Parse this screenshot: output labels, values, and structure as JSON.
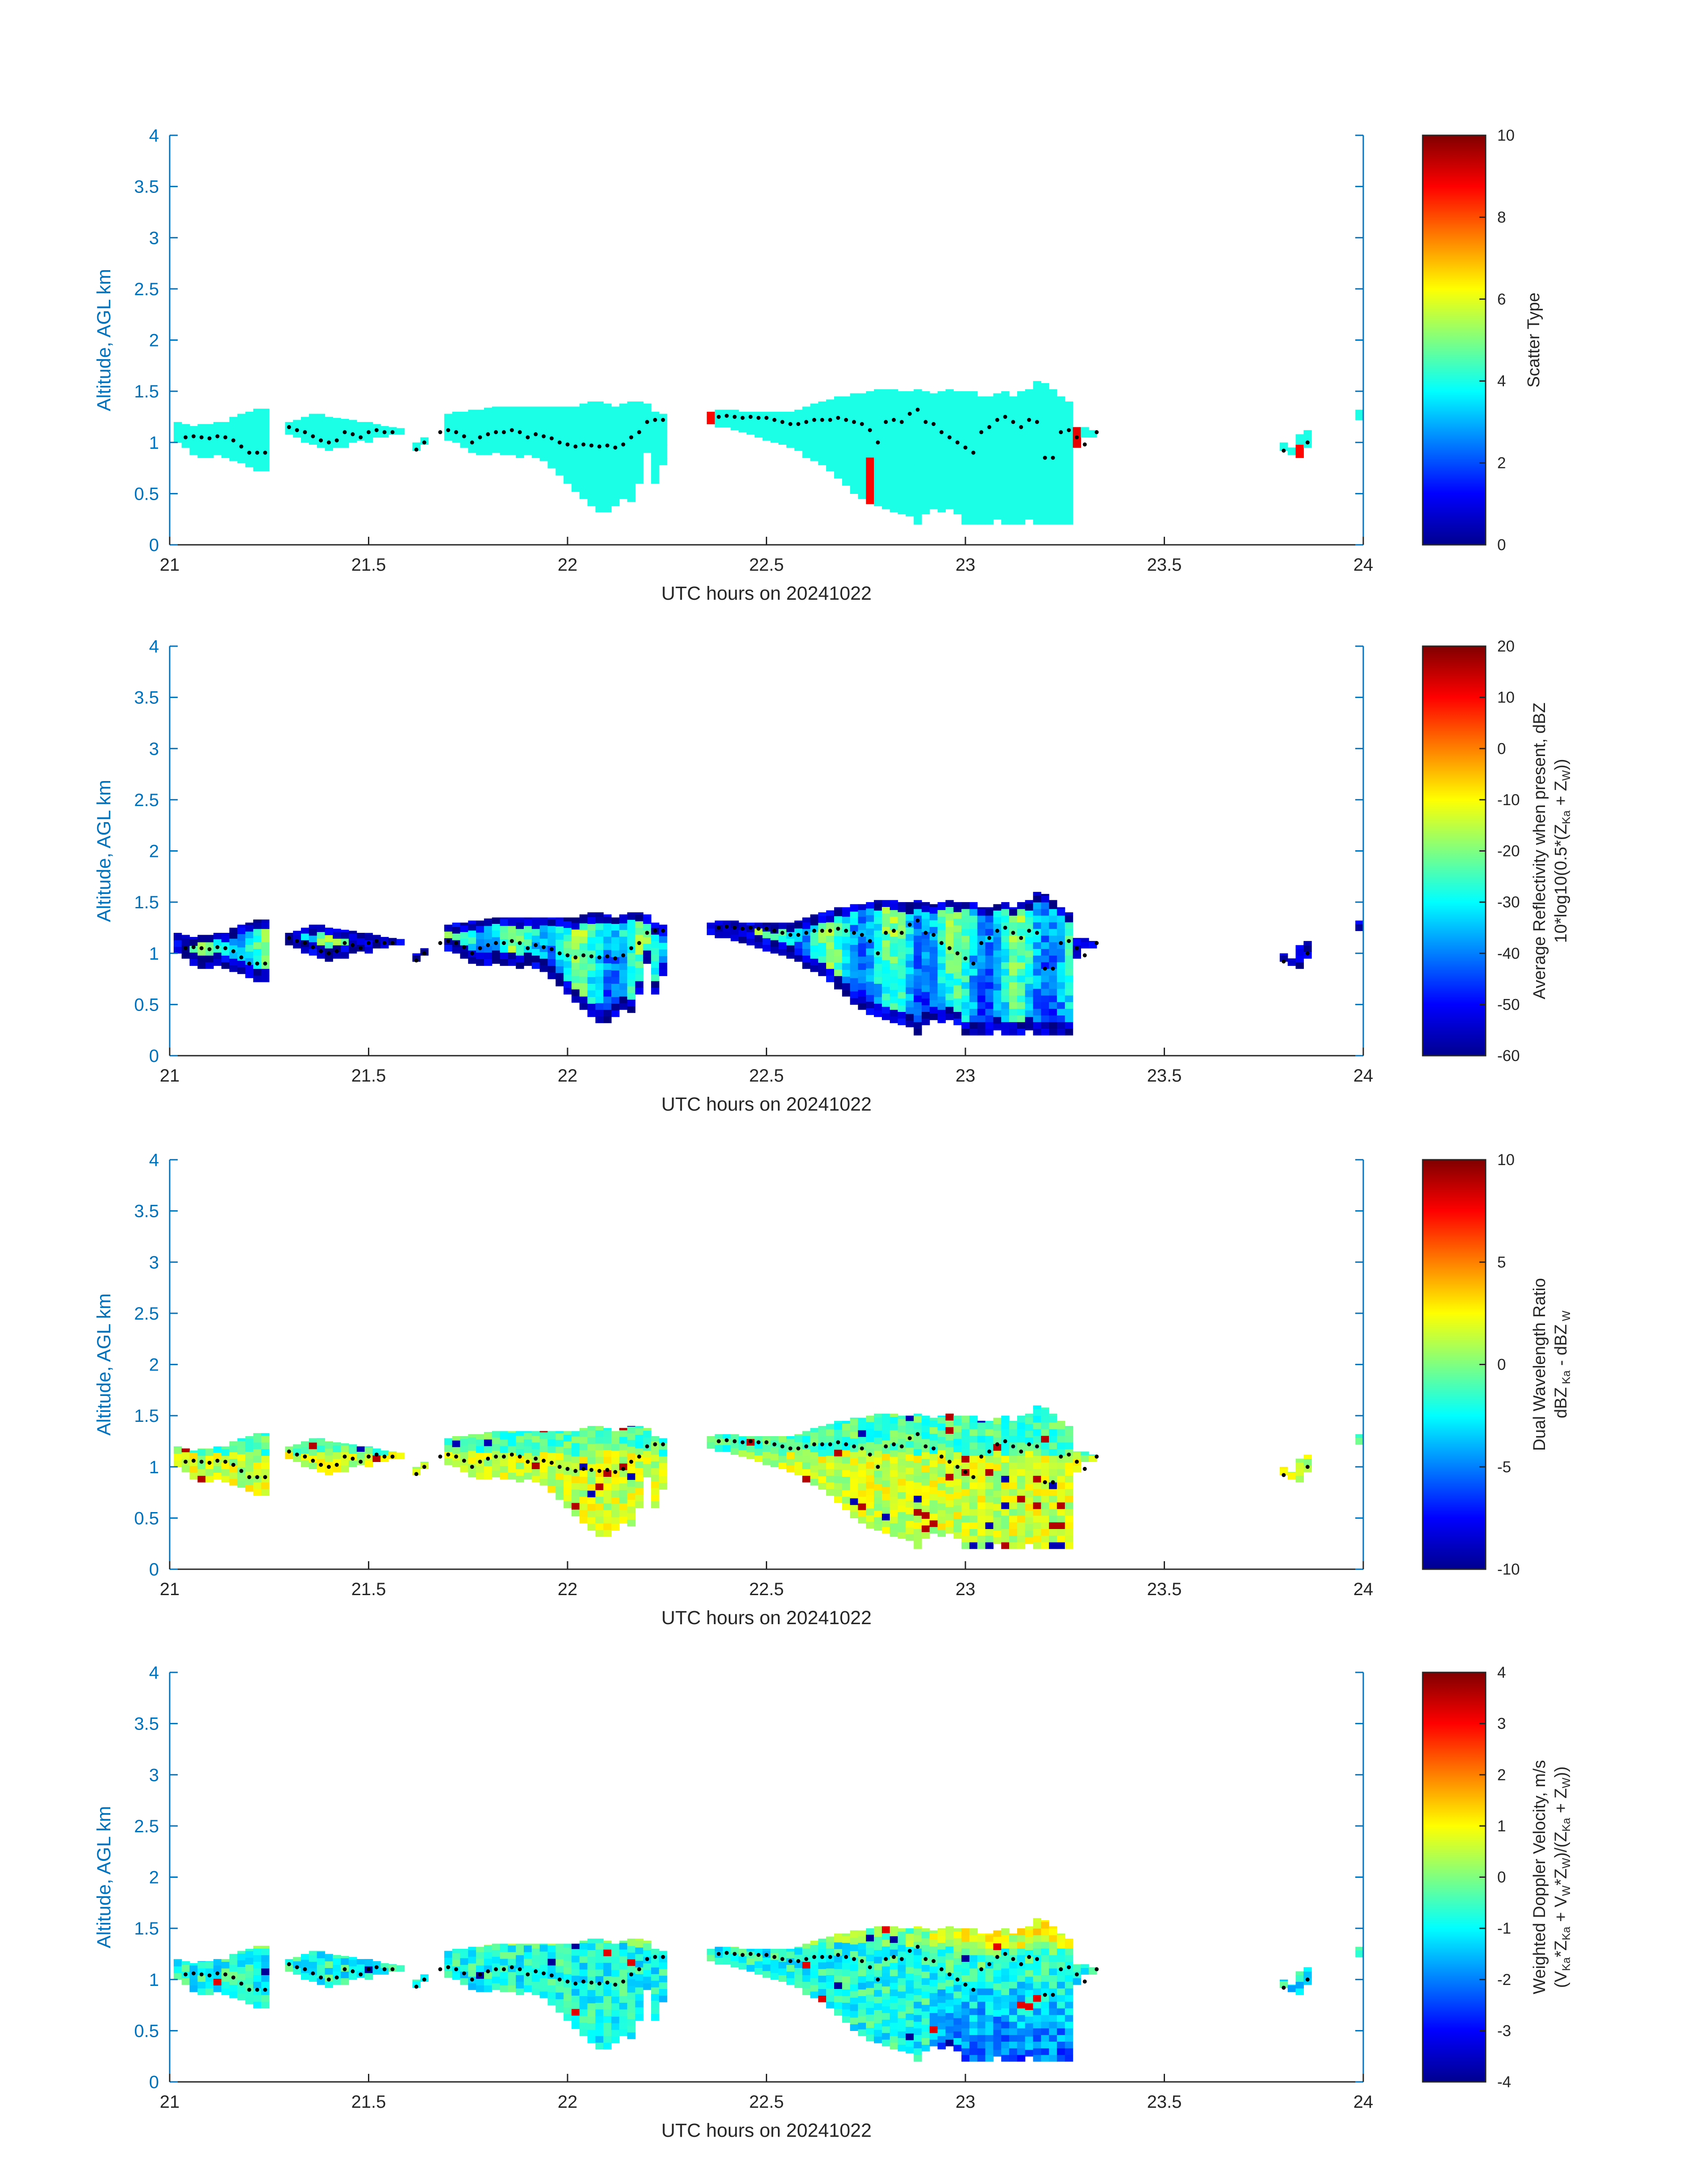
{
  "chart_data": [
    {
      "type": "heatmap",
      "panel_id": "scatter-type",
      "xlabel": "UTC hours on 20241022",
      "ylabel": "Altitude, AGL km",
      "xlim": [
        21,
        24
      ],
      "ylim": [
        0,
        4
      ],
      "x_ticks": [
        "21",
        "21.5",
        "22",
        "22.5",
        "23",
        "23.5",
        "24"
      ],
      "y_ticks": [
        "0",
        "0.5",
        "1",
        "1.5",
        "2",
        "2.5",
        "3",
        "3.5",
        "4"
      ],
      "colorbar": {
        "title": "Scatter Type",
        "title_line2": "",
        "range": [
          0,
          10
        ],
        "ticks": [
          "0",
          "2",
          "4",
          "6",
          "8",
          "10"
        ],
        "colormap": "jet"
      },
      "field": "scatter",
      "grid": false
    },
    {
      "type": "heatmap",
      "panel_id": "reflectivity",
      "xlabel": "UTC hours on 20241022",
      "ylabel": "Altitude, AGL km",
      "xlim": [
        21,
        24
      ],
      "ylim": [
        0,
        4
      ],
      "x_ticks": [
        "21",
        "21.5",
        "22",
        "22.5",
        "23",
        "23.5",
        "24"
      ],
      "y_ticks": [
        "0",
        "0.5",
        "1",
        "1.5",
        "2",
        "2.5",
        "3",
        "3.5",
        "4"
      ],
      "colorbar": {
        "title": "Average Reflectivity when present, dBZ",
        "title_line2": "10*log10(0.5*(Z Ka + Z W))",
        "range": [
          -60,
          20
        ],
        "ticks": [
          "-60",
          "-50",
          "-40",
          "-30",
          "-20",
          "-10",
          "0",
          "10",
          "20"
        ],
        "colormap": "jet"
      },
      "field": "reflectivity",
      "grid": false
    },
    {
      "type": "heatmap",
      "panel_id": "dwr",
      "xlabel": "UTC hours on 20241022",
      "ylabel": "Altitude, AGL km",
      "xlim": [
        21,
        24
      ],
      "ylim": [
        0,
        4
      ],
      "x_ticks": [
        "21",
        "21.5",
        "22",
        "22.5",
        "23",
        "23.5",
        "24"
      ],
      "y_ticks": [
        "0",
        "0.5",
        "1",
        "1.5",
        "2",
        "2.5",
        "3",
        "3.5",
        "4"
      ],
      "colorbar": {
        "title": "Dual Wavelength Ratio",
        "title_line2": "dBZ Ka - dBZ W",
        "range": [
          -10,
          10
        ],
        "ticks": [
          "-10",
          "-5",
          "0",
          "5",
          "10"
        ],
        "colormap": "jet"
      },
      "field": "dwr",
      "grid": false
    },
    {
      "type": "heatmap",
      "panel_id": "doppler-velocity",
      "xlabel": "UTC hours on 20241022",
      "ylabel": "Altitude, AGL km",
      "xlim": [
        21,
        24
      ],
      "ylim": [
        0,
        4
      ],
      "x_ticks": [
        "21",
        "21.5",
        "22",
        "22.5",
        "23",
        "23.5",
        "24"
      ],
      "y_ticks": [
        "0",
        "0.5",
        "1",
        "1.5",
        "2",
        "2.5",
        "3",
        "3.5",
        "4"
      ],
      "colorbar": {
        "title": "Weighted Doppler Velocity, m/s",
        "title_line2": "(V Ka*Z Ka + V W*Z W)/(Z Ka + Z W))",
        "range": [
          -4,
          4
        ],
        "ticks": [
          "-4",
          "-3",
          "-2",
          "-1",
          "0",
          "1",
          "2",
          "3",
          "4"
        ],
        "colormap": "jet"
      },
      "field": "velocity",
      "grid": false
    }
  ],
  "cloud_columns": [
    [
      21.02,
      1.0,
      1.2
    ],
    [
      21.04,
      0.95,
      1.18
    ],
    [
      21.06,
      0.88,
      1.16
    ],
    [
      21.08,
      0.85,
      1.18
    ],
    [
      21.1,
      0.85,
      1.18
    ],
    [
      21.12,
      0.88,
      1.2
    ],
    [
      21.14,
      0.85,
      1.2
    ],
    [
      21.16,
      0.82,
      1.25
    ],
    [
      21.18,
      0.8,
      1.28
    ],
    [
      21.2,
      0.76,
      1.3
    ],
    [
      21.22,
      0.72,
      1.33
    ],
    [
      21.24,
      0.72,
      1.33
    ],
    [
      21.3,
      1.08,
      1.2
    ],
    [
      21.32,
      1.05,
      1.22
    ],
    [
      21.34,
      1.0,
      1.25
    ],
    [
      21.36,
      0.98,
      1.28
    ],
    [
      21.38,
      0.95,
      1.28
    ],
    [
      21.4,
      0.92,
      1.25
    ],
    [
      21.42,
      0.95,
      1.24
    ],
    [
      21.44,
      0.95,
      1.23
    ],
    [
      21.46,
      1.0,
      1.22
    ],
    [
      21.48,
      1.02,
      1.2
    ],
    [
      21.5,
      1.0,
      1.2
    ],
    [
      21.52,
      1.05,
      1.18
    ],
    [
      21.54,
      1.05,
      1.16
    ],
    [
      21.56,
      1.08,
      1.15
    ],
    [
      21.58,
      1.08,
      1.14
    ],
    [
      21.62,
      0.92,
      1.0
    ],
    [
      21.64,
      0.98,
      1.05
    ],
    [
      21.7,
      1.02,
      1.28
    ],
    [
      21.72,
      1.0,
      1.3
    ],
    [
      21.74,
      0.95,
      1.3
    ],
    [
      21.76,
      0.9,
      1.32
    ],
    [
      21.78,
      0.88,
      1.32
    ],
    [
      21.8,
      0.88,
      1.34
    ],
    [
      21.82,
      0.9,
      1.35
    ],
    [
      21.84,
      0.88,
      1.35
    ],
    [
      21.86,
      0.88,
      1.35
    ],
    [
      21.88,
      0.85,
      1.35
    ],
    [
      21.9,
      0.88,
      1.35
    ],
    [
      21.92,
      0.85,
      1.35
    ],
    [
      21.94,
      0.82,
      1.35
    ],
    [
      21.96,
      0.75,
      1.35
    ],
    [
      21.98,
      0.68,
      1.35
    ],
    [
      22.0,
      0.6,
      1.35
    ],
    [
      22.02,
      0.52,
      1.35
    ],
    [
      22.04,
      0.45,
      1.38
    ],
    [
      22.06,
      0.38,
      1.4
    ],
    [
      22.08,
      0.32,
      1.4
    ],
    [
      22.1,
      0.32,
      1.38
    ],
    [
      22.12,
      0.38,
      1.35
    ],
    [
      22.14,
      0.45,
      1.38
    ],
    [
      22.16,
      0.42,
      1.4
    ],
    [
      22.18,
      0.6,
      1.4
    ],
    [
      22.2,
      0.9,
      1.38
    ],
    [
      22.22,
      0.6,
      1.3
    ],
    [
      22.24,
      0.78,
      1.28
    ],
    [
      22.36,
      1.18,
      1.3
    ],
    [
      22.38,
      1.15,
      1.32
    ],
    [
      22.4,
      1.15,
      1.32
    ],
    [
      22.42,
      1.12,
      1.32
    ],
    [
      22.44,
      1.1,
      1.3
    ],
    [
      22.46,
      1.08,
      1.3
    ],
    [
      22.48,
      1.05,
      1.3
    ],
    [
      22.5,
      1.02,
      1.3
    ],
    [
      22.52,
      1.0,
      1.3
    ],
    [
      22.54,
      0.98,
      1.3
    ],
    [
      22.56,
      0.95,
      1.3
    ],
    [
      22.58,
      0.92,
      1.32
    ],
    [
      22.6,
      0.85,
      1.35
    ],
    [
      22.62,
      0.82,
      1.38
    ],
    [
      22.64,
      0.78,
      1.4
    ],
    [
      22.66,
      0.72,
      1.42
    ],
    [
      22.68,
      0.65,
      1.45
    ],
    [
      22.7,
      0.58,
      1.45
    ],
    [
      22.72,
      0.5,
      1.48
    ],
    [
      22.74,
      0.45,
      1.48
    ],
    [
      22.76,
      0.4,
      1.5
    ],
    [
      22.78,
      0.38,
      1.52
    ],
    [
      22.8,
      0.35,
      1.52
    ],
    [
      22.82,
      0.32,
      1.52
    ],
    [
      22.84,
      0.3,
      1.5
    ],
    [
      22.86,
      0.28,
      1.5
    ],
    [
      22.88,
      0.2,
      1.52
    ],
    [
      22.9,
      0.3,
      1.5
    ],
    [
      22.92,
      0.35,
      1.48
    ],
    [
      22.94,
      0.32,
      1.5
    ],
    [
      22.96,
      0.35,
      1.52
    ],
    [
      22.98,
      0.3,
      1.5
    ],
    [
      23.0,
      0.2,
      1.5
    ],
    [
      23.02,
      0.2,
      1.5
    ],
    [
      23.04,
      0.2,
      1.45
    ],
    [
      23.06,
      0.2,
      1.45
    ],
    [
      23.08,
      0.25,
      1.48
    ],
    [
      23.1,
      0.2,
      1.5
    ],
    [
      23.12,
      0.2,
      1.45
    ],
    [
      23.14,
      0.2,
      1.5
    ],
    [
      23.16,
      0.25,
      1.52
    ],
    [
      23.18,
      0.2,
      1.6
    ],
    [
      23.2,
      0.2,
      1.58
    ],
    [
      23.22,
      0.2,
      1.52
    ],
    [
      23.24,
      0.2,
      1.45
    ],
    [
      23.26,
      0.2,
      1.4
    ],
    [
      23.28,
      0.95,
      1.15
    ],
    [
      23.3,
      1.05,
      1.15
    ],
    [
      23.32,
      1.05,
      1.12
    ],
    [
      23.8,
      0.92,
      1.0
    ],
    [
      23.82,
      0.88,
      0.95
    ],
    [
      23.84,
      0.85,
      1.08
    ],
    [
      23.86,
      0.95,
      1.12
    ],
    [
      23.99,
      1.22,
      1.32
    ]
  ],
  "track_points": [
    [
      21.04,
      1.05
    ],
    [
      21.06,
      1.06
    ],
    [
      21.08,
      1.05
    ],
    [
      21.1,
      1.04
    ],
    [
      21.12,
      1.06
    ],
    [
      21.14,
      1.05
    ],
    [
      21.16,
      1.02
    ],
    [
      21.18,
      0.96
    ],
    [
      21.2,
      0.9
    ],
    [
      21.22,
      0.9
    ],
    [
      21.24,
      0.9
    ],
    [
      21.3,
      1.15
    ],
    [
      21.32,
      1.12
    ],
    [
      21.34,
      1.1
    ],
    [
      21.36,
      1.06
    ],
    [
      21.38,
      1.02
    ],
    [
      21.4,
      1.0
    ],
    [
      21.42,
      1.02
    ],
    [
      21.44,
      1.1
    ],
    [
      21.46,
      1.08
    ],
    [
      21.48,
      1.05
    ],
    [
      21.5,
      1.1
    ],
    [
      21.52,
      1.12
    ],
    [
      21.54,
      1.1
    ],
    [
      21.56,
      1.1
    ],
    [
      21.62,
      0.93
    ],
    [
      21.64,
      1.0
    ],
    [
      21.68,
      1.1
    ],
    [
      21.7,
      1.12
    ],
    [
      21.72,
      1.1
    ],
    [
      21.74,
      1.06
    ],
    [
      21.76,
      1.0
    ],
    [
      21.78,
      1.05
    ],
    [
      21.8,
      1.08
    ],
    [
      21.82,
      1.1
    ],
    [
      21.84,
      1.1
    ],
    [
      21.86,
      1.12
    ],
    [
      21.88,
      1.1
    ],
    [
      21.9,
      1.05
    ],
    [
      21.92,
      1.08
    ],
    [
      21.94,
      1.06
    ],
    [
      21.96,
      1.04
    ],
    [
      21.98,
      1.0
    ],
    [
      22.0,
      0.98
    ],
    [
      22.02,
      0.96
    ],
    [
      22.04,
      0.98
    ],
    [
      22.06,
      0.97
    ],
    [
      22.08,
      0.96
    ],
    [
      22.1,
      0.97
    ],
    [
      22.12,
      0.95
    ],
    [
      22.14,
      0.98
    ],
    [
      22.16,
      1.05
    ],
    [
      22.18,
      1.1
    ],
    [
      22.2,
      1.2
    ],
    [
      22.22,
      1.22
    ],
    [
      22.24,
      1.22
    ],
    [
      22.38,
      1.25
    ],
    [
      22.4,
      1.26
    ],
    [
      22.42,
      1.25
    ],
    [
      22.44,
      1.24
    ],
    [
      22.46,
      1.25
    ],
    [
      22.48,
      1.24
    ],
    [
      22.5,
      1.24
    ],
    [
      22.52,
      1.22
    ],
    [
      22.54,
      1.2
    ],
    [
      22.56,
      1.18
    ],
    [
      22.58,
      1.18
    ],
    [
      22.6,
      1.2
    ],
    [
      22.62,
      1.22
    ],
    [
      22.64,
      1.22
    ],
    [
      22.66,
      1.22
    ],
    [
      22.68,
      1.24
    ],
    [
      22.7,
      1.22
    ],
    [
      22.72,
      1.2
    ],
    [
      22.74,
      1.18
    ],
    [
      22.76,
      1.12
    ],
    [
      22.78,
      1.0
    ],
    [
      22.8,
      1.2
    ],
    [
      22.82,
      1.22
    ],
    [
      22.84,
      1.2
    ],
    [
      22.86,
      1.28
    ],
    [
      22.88,
      1.32
    ],
    [
      22.9,
      1.2
    ],
    [
      22.92,
      1.18
    ],
    [
      22.94,
      1.1
    ],
    [
      22.96,
      1.05
    ],
    [
      22.98,
      1.0
    ],
    [
      23.0,
      0.95
    ],
    [
      23.02,
      0.9
    ],
    [
      23.04,
      1.1
    ],
    [
      23.06,
      1.15
    ],
    [
      23.08,
      1.22
    ],
    [
      23.1,
      1.25
    ],
    [
      23.12,
      1.2
    ],
    [
      23.14,
      1.15
    ],
    [
      23.16,
      1.22
    ],
    [
      23.18,
      1.2
    ],
    [
      23.2,
      0.85
    ],
    [
      23.22,
      0.85
    ],
    [
      23.24,
      1.1
    ],
    [
      23.26,
      1.12
    ],
    [
      23.28,
      1.05
    ],
    [
      23.3,
      0.98
    ],
    [
      23.33,
      1.1
    ],
    [
      23.8,
      0.92
    ],
    [
      23.86,
      1.0
    ]
  ]
}
